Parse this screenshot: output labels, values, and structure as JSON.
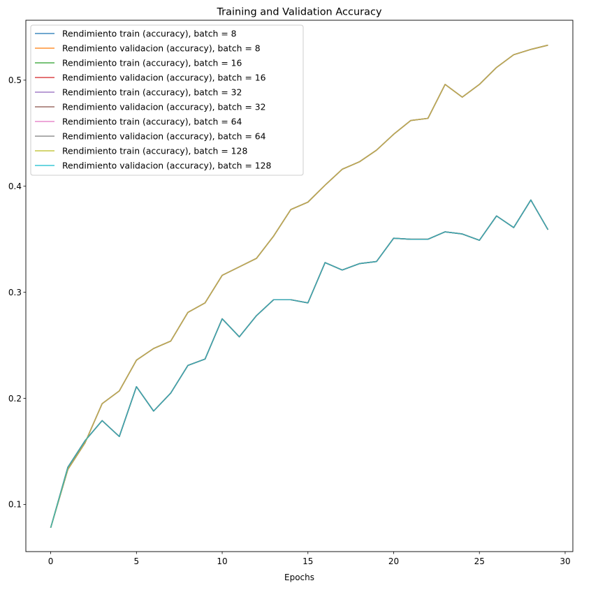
{
  "chart_data": {
    "type": "line",
    "title": "Training and Validation Accuracy",
    "xlabel": "Epochs",
    "ylabel": "",
    "xlim": [
      -1.45,
      30.45
    ],
    "ylim": [
      0.0555,
      0.5565
    ],
    "xticks": [
      0,
      5,
      10,
      15,
      20,
      25,
      30
    ],
    "yticks": [
      0.1,
      0.2,
      0.3,
      0.4,
      0.5
    ],
    "xtick_labels": [
      "0",
      "5",
      "10",
      "15",
      "20",
      "25",
      "30"
    ],
    "ytick_labels": [
      "0.1",
      "0.2",
      "0.3",
      "0.4",
      "0.5"
    ],
    "grid": false,
    "legend_position": "top-left",
    "x": [
      0,
      1,
      2,
      3,
      4,
      5,
      6,
      7,
      8,
      9,
      10,
      11,
      12,
      13,
      14,
      15,
      16,
      17,
      18,
      19,
      20,
      21,
      22,
      23,
      24,
      25,
      26,
      27,
      28,
      29
    ],
    "series": [
      {
        "name": "Rendimiento train (accuracy), batch = 8",
        "color": "#1f77b4",
        "values": [
          0.078,
          0.133,
          0.158,
          0.195,
          0.207,
          0.236,
          0.247,
          0.254,
          0.281,
          0.29,
          0.316,
          0.324,
          0.332,
          0.353,
          0.378,
          0.385,
          0.401,
          0.416,
          0.423,
          0.434,
          0.449,
          0.462,
          0.464,
          0.496,
          0.484,
          0.496,
          0.512,
          0.524,
          0.529,
          0.533
        ]
      },
      {
        "name": "Rendimiento validacion (accuracy), batch = 8",
        "color": "#ff7f0e",
        "values": [
          0.078,
          0.135,
          0.16,
          0.179,
          0.164,
          0.211,
          0.188,
          0.205,
          0.231,
          0.237,
          0.275,
          0.258,
          0.278,
          0.293,
          0.293,
          0.29,
          0.328,
          0.321,
          0.327,
          0.329,
          0.351,
          0.35,
          0.35,
          0.357,
          0.355,
          0.349,
          0.372,
          0.361,
          0.387,
          0.359
        ]
      },
      {
        "name": "Rendimiento train (accuracy), batch = 16",
        "color": "#2ca02c",
        "values": [
          0.078,
          0.133,
          0.158,
          0.195,
          0.207,
          0.236,
          0.247,
          0.254,
          0.281,
          0.29,
          0.316,
          0.324,
          0.332,
          0.353,
          0.378,
          0.385,
          0.401,
          0.416,
          0.423,
          0.434,
          0.449,
          0.462,
          0.464,
          0.496,
          0.484,
          0.496,
          0.512,
          0.524,
          0.529,
          0.533
        ]
      },
      {
        "name": "Rendimiento validacion (accuracy), batch = 16",
        "color": "#d62728",
        "values": [
          0.078,
          0.135,
          0.16,
          0.179,
          0.164,
          0.211,
          0.188,
          0.205,
          0.231,
          0.237,
          0.275,
          0.258,
          0.278,
          0.293,
          0.293,
          0.29,
          0.328,
          0.321,
          0.327,
          0.329,
          0.351,
          0.35,
          0.35,
          0.357,
          0.355,
          0.349,
          0.372,
          0.361,
          0.387,
          0.359
        ]
      },
      {
        "name": "Rendimiento train (accuracy), batch = 32",
        "color": "#9467bd",
        "values": [
          0.078,
          0.133,
          0.158,
          0.195,
          0.207,
          0.236,
          0.247,
          0.254,
          0.281,
          0.29,
          0.316,
          0.324,
          0.332,
          0.353,
          0.378,
          0.385,
          0.401,
          0.416,
          0.423,
          0.434,
          0.449,
          0.462,
          0.464,
          0.496,
          0.484,
          0.496,
          0.512,
          0.524,
          0.529,
          0.533
        ]
      },
      {
        "name": "Rendimiento validacion (accuracy), batch = 32",
        "color": "#8c564b",
        "values": [
          0.078,
          0.135,
          0.16,
          0.179,
          0.164,
          0.211,
          0.188,
          0.205,
          0.231,
          0.237,
          0.275,
          0.258,
          0.278,
          0.293,
          0.293,
          0.29,
          0.328,
          0.321,
          0.327,
          0.329,
          0.351,
          0.35,
          0.35,
          0.357,
          0.355,
          0.349,
          0.372,
          0.361,
          0.387,
          0.359
        ]
      },
      {
        "name": "Rendimiento train (accuracy), batch = 64",
        "color": "#e377c2",
        "values": [
          0.078,
          0.133,
          0.158,
          0.195,
          0.207,
          0.236,
          0.247,
          0.254,
          0.281,
          0.29,
          0.316,
          0.324,
          0.332,
          0.353,
          0.378,
          0.385,
          0.401,
          0.416,
          0.423,
          0.434,
          0.449,
          0.462,
          0.464,
          0.496,
          0.484,
          0.496,
          0.512,
          0.524,
          0.529,
          0.533
        ]
      },
      {
        "name": "Rendimiento validacion (accuracy), batch = 64",
        "color": "#7f7f7f",
        "values": [
          0.078,
          0.135,
          0.16,
          0.179,
          0.164,
          0.211,
          0.188,
          0.205,
          0.231,
          0.237,
          0.275,
          0.258,
          0.278,
          0.293,
          0.293,
          0.29,
          0.328,
          0.321,
          0.327,
          0.329,
          0.351,
          0.35,
          0.35,
          0.357,
          0.355,
          0.349,
          0.372,
          0.361,
          0.387,
          0.359
        ]
      },
      {
        "name": "Rendimiento train (accuracy), batch = 128",
        "color": "#bcbd22",
        "values": [
          0.078,
          0.133,
          0.158,
          0.195,
          0.207,
          0.236,
          0.247,
          0.254,
          0.281,
          0.29,
          0.316,
          0.324,
          0.332,
          0.353,
          0.378,
          0.385,
          0.401,
          0.416,
          0.423,
          0.434,
          0.449,
          0.462,
          0.464,
          0.496,
          0.484,
          0.496,
          0.512,
          0.524,
          0.529,
          0.533
        ]
      },
      {
        "name": "Rendimiento validacion (accuracy), batch = 128",
        "color": "#17becf",
        "values": [
          0.078,
          0.135,
          0.16,
          0.179,
          0.164,
          0.211,
          0.188,
          0.205,
          0.231,
          0.237,
          0.275,
          0.258,
          0.278,
          0.293,
          0.293,
          0.29,
          0.328,
          0.321,
          0.327,
          0.329,
          0.351,
          0.35,
          0.35,
          0.357,
          0.355,
          0.349,
          0.372,
          0.361,
          0.387,
          0.359
        ]
      }
    ]
  }
}
